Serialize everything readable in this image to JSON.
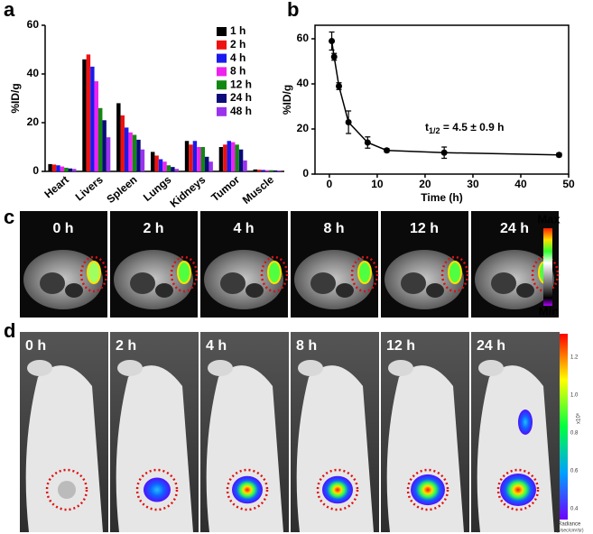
{
  "panel_labels": [
    "a",
    "b",
    "c",
    "d"
  ],
  "chart_data": [
    {
      "type": "bar",
      "y_label": "%ID/g",
      "categories": [
        "Heart",
        "Livers",
        "Spleen",
        "Lungs",
        "Kidneys",
        "Tumor",
        "Muscle"
      ],
      "series": [
        {
          "name": "1 h",
          "color": "#000000",
          "values": [
            3,
            46,
            28,
            8,
            12.5,
            10,
            0.8
          ]
        },
        {
          "name": "2 h",
          "color": "#ee1111",
          "values": [
            2.8,
            48,
            23,
            6.5,
            11,
            11,
            0.7
          ]
        },
        {
          "name": "4 h",
          "color": "#1a1aee",
          "values": [
            2.5,
            43,
            18,
            5,
            12.5,
            12.5,
            0.6
          ]
        },
        {
          "name": "8 h",
          "color": "#ee22ee",
          "values": [
            2,
            37,
            16,
            4,
            10,
            12,
            0.5
          ]
        },
        {
          "name": "12 h",
          "color": "#118811",
          "values": [
            1.5,
            26,
            15,
            2.5,
            10,
            11,
            0.5
          ]
        },
        {
          "name": "24 h",
          "color": "#0b0b7a",
          "values": [
            1.2,
            21,
            13,
            1.8,
            6,
            9,
            0.4
          ]
        },
        {
          "name": "48 h",
          "color": "#9a33ee",
          "values": [
            1,
            14,
            9,
            1,
            4,
            4.5,
            0.3
          ]
        }
      ],
      "ylim": [
        0,
        60
      ],
      "yticks": [
        0,
        20,
        40,
        60
      ],
      "legend": "top-right"
    },
    {
      "type": "line",
      "x_label": "Time (h)",
      "y_label": "%ID/g",
      "x": [
        0.5,
        1,
        2,
        4,
        8,
        12,
        24,
        48
      ],
      "values": [
        59,
        52,
        39,
        23,
        14,
        10.5,
        9.5,
        8.5
      ],
      "errors": [
        4,
        1.5,
        1.5,
        5,
        2.5,
        0.8,
        2.5,
        0.8
      ],
      "color": "#000000",
      "xlim": [
        -3,
        50
      ],
      "xticks": [
        0,
        10,
        20,
        30,
        40,
        50
      ],
      "ylim": [
        0,
        66
      ],
      "yticks": [
        0,
        20,
        40,
        60
      ],
      "annotation": {
        "main": "t",
        "sub": "1/2",
        "rest": " = 4.5 ± 0.9 h"
      }
    }
  ],
  "panel_c": {
    "times": [
      "0 h",
      "2 h",
      "4 h",
      "8 h",
      "12 h",
      "24 h"
    ],
    "colorbar": {
      "max": "Max",
      "min": "Min"
    }
  },
  "panel_d": {
    "times": [
      "0 h",
      "2 h",
      "4 h",
      "8 h",
      "12 h",
      "24 h"
    ],
    "colorbar": {
      "ticks": [
        "1.2",
        "1.0",
        "0.8",
        "0.6",
        "0.4"
      ],
      "unit": "x10⁶",
      "title": "Radiance",
      "subtitle": "(p/sec/cm²/sr)"
    }
  }
}
